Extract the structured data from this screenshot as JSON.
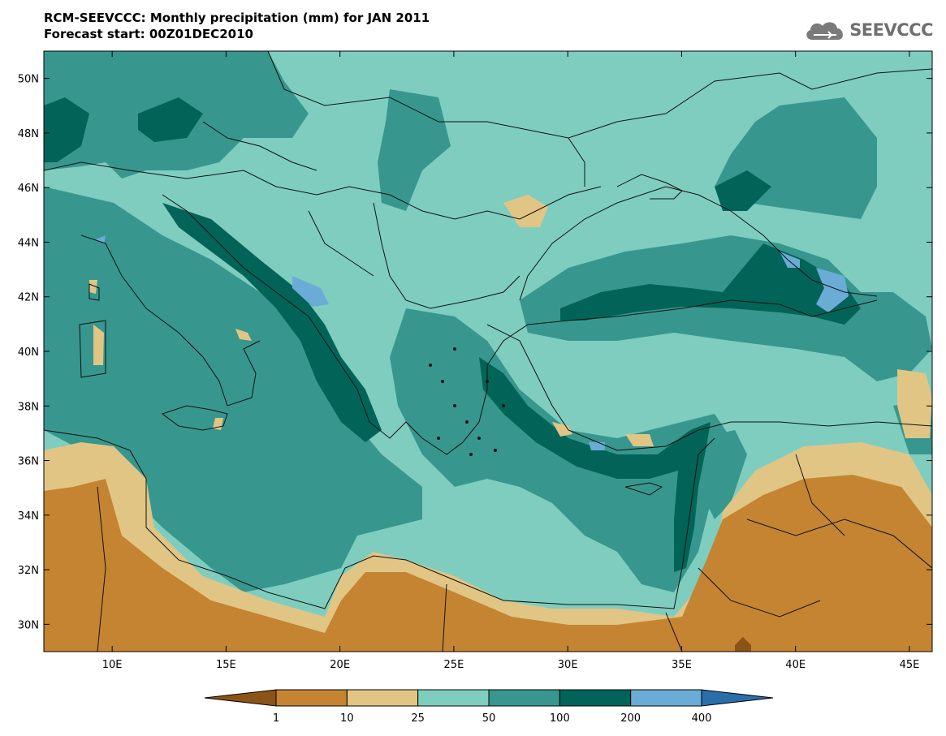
{
  "header": {
    "title": "RCM-SEEVCCC: Monthly precipitation (mm) for JAN 2011",
    "subtitle": "Forecast start: 00Z01DEC2010"
  },
  "logo": {
    "text": "SEEVCCC",
    "icon": "cloud-icon"
  },
  "map": {
    "region": "Eastern Mediterranean / Balkans / Black Sea",
    "lon_range": [
      7,
      46
    ],
    "lat_range": [
      29,
      51
    ],
    "lat_ticks": [
      {
        "value": 30,
        "label": "30N"
      },
      {
        "value": 32,
        "label": "32N"
      },
      {
        "value": 34,
        "label": "34N"
      },
      {
        "value": 36,
        "label": "36N"
      },
      {
        "value": 38,
        "label": "38N"
      },
      {
        "value": 40,
        "label": "40N"
      },
      {
        "value": 42,
        "label": "42N"
      },
      {
        "value": 44,
        "label": "44N"
      },
      {
        "value": 46,
        "label": "46N"
      },
      {
        "value": 48,
        "label": "48N"
      },
      {
        "value": 50,
        "label": "50N"
      }
    ],
    "lon_ticks": [
      {
        "value": 10,
        "label": "10E"
      },
      {
        "value": 15,
        "label": "15E"
      },
      {
        "value": 20,
        "label": "20E"
      },
      {
        "value": 25,
        "label": "25E"
      },
      {
        "value": 30,
        "label": "30E"
      },
      {
        "value": 35,
        "label": "35E"
      },
      {
        "value": 40,
        "label": "40E"
      },
      {
        "value": 45,
        "label": "45E"
      }
    ]
  },
  "colorbar": {
    "colors": [
      "#8c5316",
      "#c48432",
      "#e1c585",
      "#7fcdbf",
      "#37978e",
      "#026458",
      "#6aacd6",
      "#2a6eac"
    ],
    "labels": [
      "1",
      "10",
      "25",
      "50",
      "100",
      "200",
      "400"
    ]
  }
}
